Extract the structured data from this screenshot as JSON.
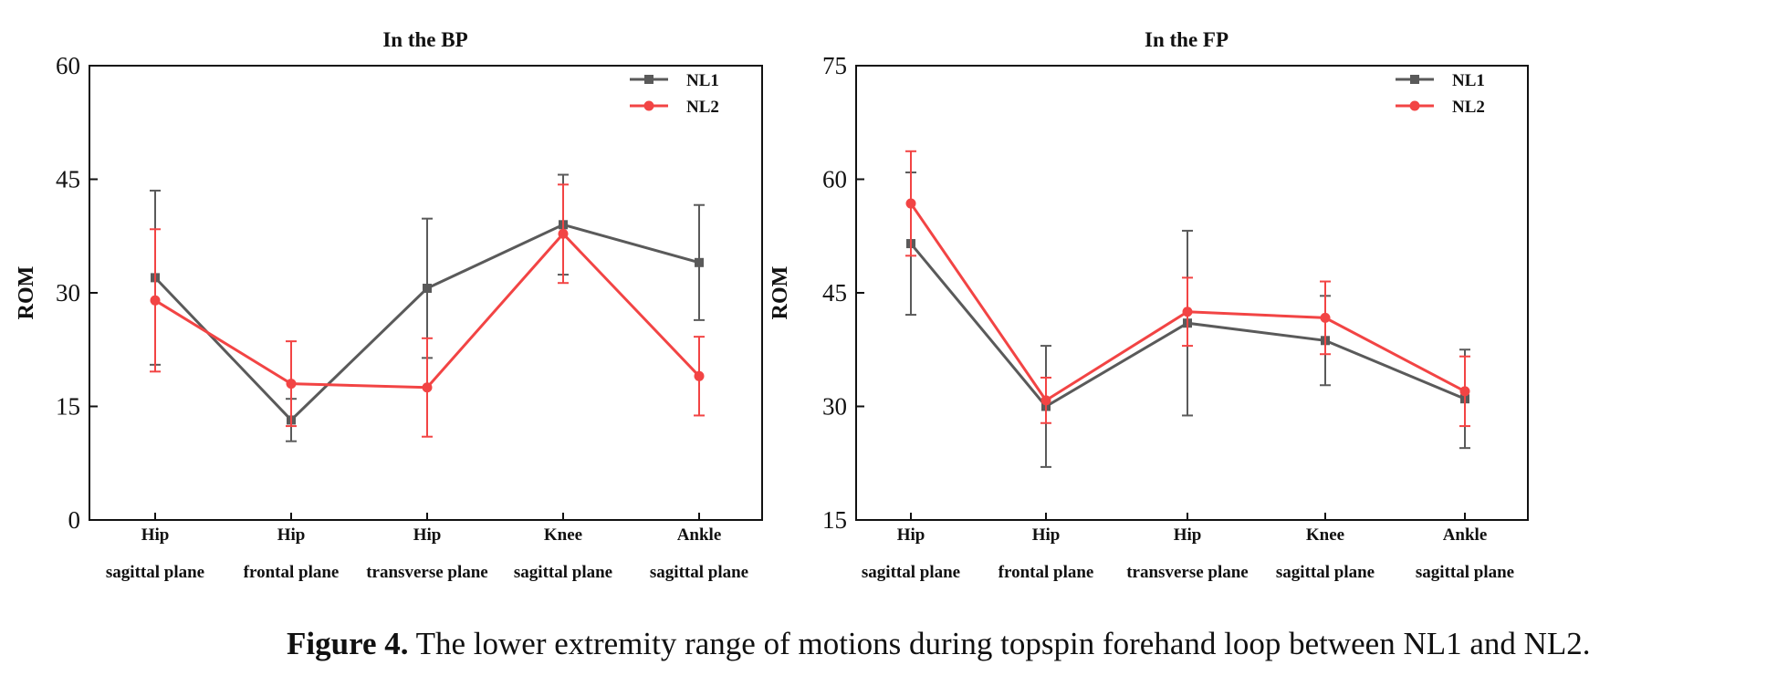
{
  "chart_data": [
    {
      "type": "line",
      "title": "In the BP",
      "ylabel": "ROM",
      "xlabel": "",
      "ylim": [
        0,
        60
      ],
      "yticks": [
        0,
        15,
        30,
        45,
        60
      ],
      "categories": [
        [
          "Hip",
          "sagittal plane"
        ],
        [
          "Hip",
          "frontal plane"
        ],
        [
          "Hip",
          "transverse plane"
        ],
        [
          "Knee",
          "sagittal plane"
        ],
        [
          "Ankle",
          "sagittal plane"
        ]
      ],
      "series": [
        {
          "name": "NL1",
          "color": "#5a5a5a",
          "marker": "square",
          "values": [
            32.0,
            13.2,
            30.6,
            39.0,
            34.0
          ],
          "errors": [
            11.5,
            2.8,
            9.2,
            6.6,
            7.6
          ]
        },
        {
          "name": "NL2",
          "color": "#f24444",
          "marker": "circle",
          "values": [
            29.0,
            18.0,
            17.5,
            37.8,
            19.0
          ],
          "errors": [
            9.4,
            5.6,
            6.5,
            6.5,
            5.2
          ]
        }
      ],
      "legend": "top-right",
      "grid": false
    },
    {
      "type": "line",
      "title": "In the FP",
      "ylabel": "ROM",
      "xlabel": "",
      "ylim": [
        15,
        75
      ],
      "yticks": [
        15,
        30,
        45,
        60,
        75
      ],
      "categories": [
        [
          "Hip",
          "sagittal plane"
        ],
        [
          "Hip",
          "frontal plane"
        ],
        [
          "Hip",
          "transverse plane"
        ],
        [
          "Knee",
          "sagittal plane"
        ],
        [
          "Ankle",
          "sagittal plane"
        ]
      ],
      "series": [
        {
          "name": "NL1",
          "color": "#5a5a5a",
          "marker": "square",
          "values": [
            51.5,
            30.0,
            41.0,
            38.7,
            31.0
          ],
          "errors": [
            9.4,
            8.0,
            12.2,
            5.9,
            6.5
          ]
        },
        {
          "name": "NL2",
          "color": "#f24444",
          "marker": "circle",
          "values": [
            56.8,
            30.8,
            42.5,
            41.7,
            32.0
          ],
          "errors": [
            6.9,
            3.0,
            4.5,
            4.8,
            4.6
          ]
        }
      ],
      "legend": "top-right",
      "grid": false
    }
  ],
  "caption": {
    "label": "Figure 4.",
    "text": " The lower extremity range of motions during topspin forehand loop between NL1 and NL2."
  }
}
